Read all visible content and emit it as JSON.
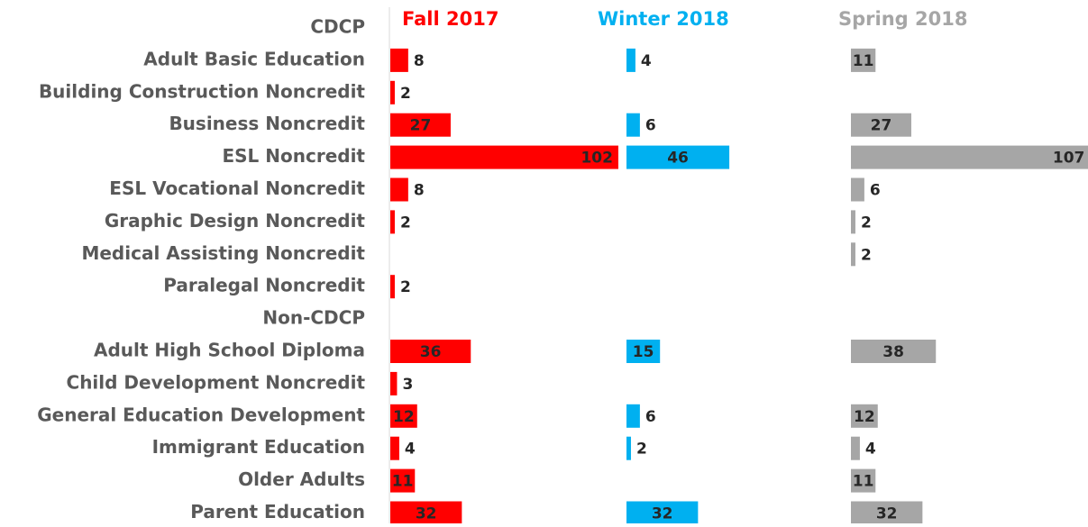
{
  "chart_data": {
    "type": "bar",
    "orientation": "horizontal",
    "categories": [
      "CDCP",
      "Adult Basic Education",
      "Building Construction Noncredit",
      "Business Noncredit",
      "ESL Noncredit",
      "ESL Vocational Noncredit",
      "Graphic Design Noncredit",
      "Medical Assisting Noncredit",
      "Paralegal Noncredit",
      "Non-CDCP",
      "Adult High School Diploma",
      "Child Development Noncredit",
      "General Education Development",
      "Immigrant Education",
      "Older Adults",
      "Parent Education"
    ],
    "series": [
      {
        "name": "Fall 2017",
        "color": "#ff0000",
        "values": [
          null,
          8,
          2,
          27,
          102,
          8,
          2,
          null,
          2,
          null,
          36,
          3,
          12,
          4,
          11,
          32
        ]
      },
      {
        "name": "Winter 2018",
        "color": "#00b0f0",
        "values": [
          null,
          4,
          null,
          6,
          46,
          null,
          null,
          null,
          null,
          null,
          15,
          null,
          6,
          2,
          null,
          32
        ]
      },
      {
        "name": "Spring 2018",
        "color": "#a6a6a6",
        "values": [
          null,
          11,
          null,
          27,
          107,
          6,
          2,
          2,
          null,
          null,
          38,
          null,
          12,
          4,
          11,
          32
        ]
      }
    ]
  }
}
